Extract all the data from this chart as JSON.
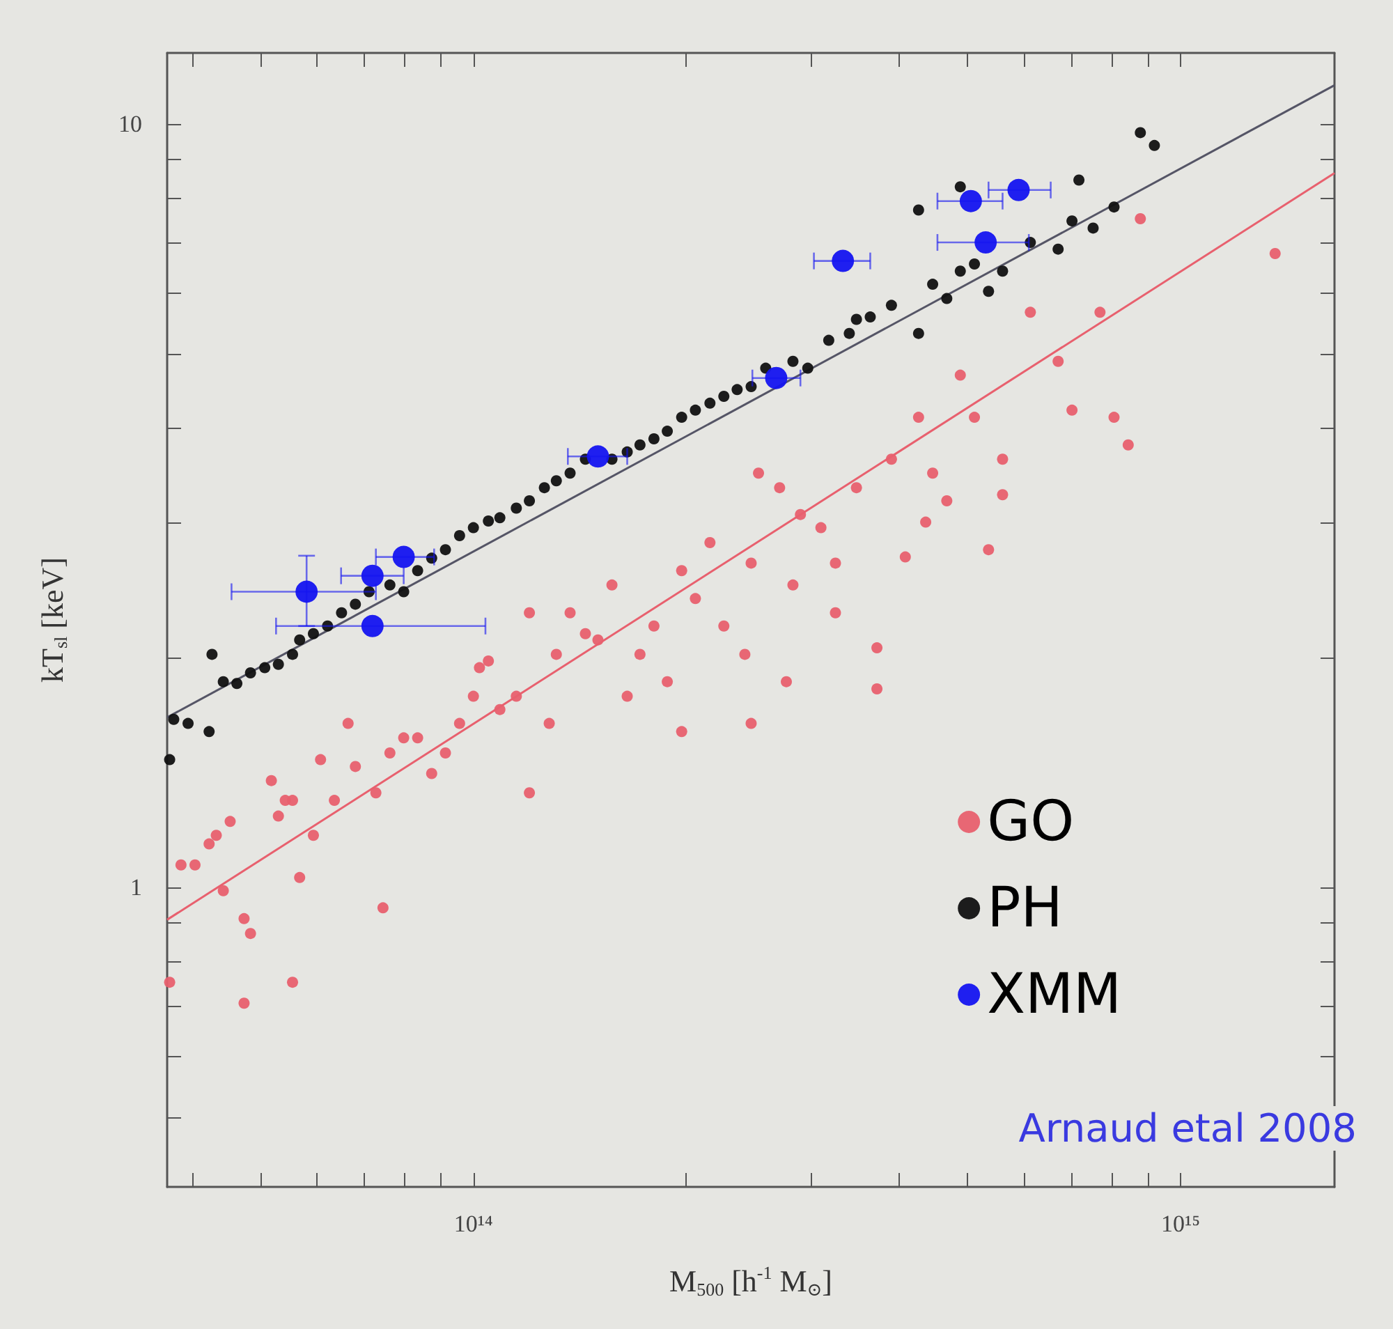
{
  "chart_data": {
    "type": "scatter",
    "xlabel": "M$_{500}$ [h$^{-1}$ M$_{⊙}$]",
    "ylabel": "kT$_{sl}$ [keV]",
    "log": "xy",
    "grid": false,
    "legend": "bottom right",
    "xlim": [
      36900000000000.0,
      1650000000000000.0
    ],
    "xticks": [
      {
        "value": 40000000000000.0,
        "label": null
      },
      {
        "value": 50000000000000.0,
        "label": null
      },
      {
        "value": 60000000000000.0,
        "label": null
      },
      {
        "value": 70000000000000.0,
        "label": null
      },
      {
        "value": 80000000000000.0,
        "label": null
      },
      {
        "value": 90000000000000.0,
        "label": null
      },
      {
        "value": 100000000000000.0,
        "label": "10¹⁴"
      },
      {
        "value": 200000000000000.0,
        "label": null
      },
      {
        "value": 300000000000000.0,
        "label": null
      },
      {
        "value": 400000000000000.0,
        "label": null
      },
      {
        "value": 500000000000000.0,
        "label": null
      },
      {
        "value": 600000000000000.0,
        "label": null
      },
      {
        "value": 700000000000000.0,
        "label": null
      },
      {
        "value": 800000000000000.0,
        "label": null
      },
      {
        "value": 900000000000000.0,
        "label": null
      },
      {
        "value": 1000000000000000.0,
        "label": "10¹⁵"
      }
    ],
    "ylim": [
      0.405,
      12.4
    ],
    "yticks": [
      {
        "value": 0.5,
        "label": null
      },
      {
        "value": 0.6,
        "label": null
      },
      {
        "value": 0.7,
        "label": null
      },
      {
        "value": 0.8,
        "label": null
      },
      {
        "value": 0.9,
        "label": null
      },
      1,
      {
        "value": 2,
        "label": null
      },
      {
        "value": 3,
        "label": null
      },
      {
        "value": 4,
        "label": null
      },
      {
        "value": 5,
        "label": null
      },
      {
        "value": 6,
        "label": null
      },
      {
        "value": 7,
        "label": null
      },
      {
        "value": 8,
        "label": null
      },
      {
        "value": 9,
        "label": null
      },
      10
    ],
    "annotations": [
      "Arnaud etal 2008"
    ],
    "series": [
      {
        "name": "GO",
        "color": "#e8606e",
        "marker": "circle",
        "x": [
          37200000000000.0,
          38600000000000.0,
          40400000000000.0,
          42300000000000.0,
          43300000000000.0,
          44300000000000.0,
          45300000000000.0,
          47400000000000.0,
          48400000000000.0,
          51800000000000.0,
          53000000000000.0,
          54200000000000.0,
          55500000000000.0,
          56800000000000.0,
          59400000000000.0,
          55500000000000.0,
          47400000000000.0,
          60800000000000.0,
          63600000000000.0,
          66500000000000.0,
          68100000000000.0,
          72800000000000.0,
          74500000000000.0,
          76200000000000.0,
          79700000000000.0,
          83400000000000.0,
          87300000000000.0,
          91300000000000.0,
          95600000000000.0,
          100000000000000.0,
          102000000000000.0,
          105000000000000.0,
          109000000000000.0,
          115000000000000.0,
          120000000000000.0,
          120000000000000.0,
          128000000000000.0,
          131000000000000.0,
          137000000000000.0,
          144000000000000.0,
          150000000000000.0,
          157000000000000.0,
          165000000000000.0,
          172000000000000.0,
          180000000000000.0,
          188000000000000.0,
          197000000000000.0,
          197000000000000.0,
          206000000000000.0,
          216000000000000.0,
          226000000000000.0,
          242000000000000.0,
          247000000000000.0,
          253000000000000.0,
          271000000000000.0,
          277000000000000.0,
          283000000000000.0,
          290000000000000.0,
          310000000000000.0,
          325000000000000.0,
          348000000000000.0,
          372000000000000.0,
          390000000000000.0,
          408000000000000.0,
          426000000000000.0,
          446000000000000.0,
          467000000000000.0,
          488000000000000.0,
          511000000000000.0,
          535000000000000.0,
          560000000000000.0,
          560000000000000.0,
          613000000000000.0,
          671000000000000.0,
          702000000000000.0,
          769000000000000.0,
          805000000000000.0,
          843000000000000.0,
          877000000000000.0,
          1360000000000000.0,
          372000000000000.0,
          436000000000000.0,
          247000000000000.0,
          325000000000000.0
        ],
        "values": [
          0.751,
          1.07,
          1.07,
          1.14,
          1.17,
          0.99,
          1.22,
          0.91,
          0.87,
          1.38,
          1.24,
          1.3,
          1.3,
          1.03,
          1.17,
          0.751,
          0.705,
          1.47,
          1.3,
          1.64,
          1.44,
          1.33,
          0.94,
          1.5,
          1.57,
          1.57,
          1.41,
          1.5,
          1.64,
          1.78,
          1.94,
          1.98,
          1.71,
          1.78,
          1.33,
          2.29,
          1.64,
          2.02,
          2.29,
          2.15,
          2.11,
          2.49,
          1.78,
          2.02,
          2.2,
          1.86,
          1.6,
          2.6,
          2.39,
          2.83,
          2.2,
          2.02,
          1.64,
          3.49,
          3.34,
          1.86,
          2.49,
          3.08,
          2.96,
          2.29,
          3.34,
          2.06,
          3.64,
          2.71,
          4.13,
          3.49,
          3.21,
          4.69,
          4.13,
          2.77,
          3.64,
          3.27,
          5.67,
          4.89,
          4.22,
          5.67,
          4.13,
          3.8,
          7.52,
          6.77,
          1.82,
          3.01,
          2.66,
          2.66
        ]
      },
      {
        "name": "PH",
        "color": "#111111",
        "marker": "circle",
        "x": [
          37200000000000.0,
          37700000000000.0,
          39500000000000.0,
          42300000000000.0,
          42700000000000.0,
          44300000000000.0,
          46300000000000.0,
          48400000000000.0,
          50700000000000.0,
          53000000000000.0,
          55500000000000.0,
          56800000000000.0,
          59400000000000.0,
          62200000000000.0,
          65100000000000.0,
          68100000000000.0,
          71200000000000.0,
          76200000000000.0,
          79700000000000.0,
          83400000000000.0,
          87300000000000.0,
          91300000000000.0,
          95600000000000.0,
          100000000000000.0,
          105000000000000.0,
          109000000000000.0,
          115000000000000.0,
          120000000000000.0,
          126000000000000.0,
          131000000000000.0,
          137000000000000.0,
          144000000000000.0,
          157000000000000.0,
          165000000000000.0,
          172000000000000.0,
          180000000000000.0,
          188000000000000.0,
          197000000000000.0,
          206000000000000.0,
          216000000000000.0,
          226000000000000.0,
          236000000000000.0,
          247000000000000.0,
          259000000000000.0,
          271000000000000.0,
          283000000000000.0,
          297000000000000.0,
          318000000000000.0,
          340000000000000.0,
          348000000000000.0,
          364000000000000.0,
          390000000000000.0,
          426000000000000.0,
          446000000000000.0,
          467000000000000.0,
          488000000000000.0,
          511000000000000.0,
          535000000000000.0,
          560000000000000.0,
          613000000000000.0,
          671000000000000.0,
          702000000000000.0,
          752000000000000.0,
          805000000000000.0,
          718000000000000.0,
          877000000000000.0,
          918000000000000.0,
          426000000000000.0,
          488000000000000.0
        ],
        "values": [
          1.47,
          1.66,
          1.64,
          1.6,
          2.02,
          1.86,
          1.85,
          1.91,
          1.94,
          1.96,
          2.02,
          2.11,
          2.15,
          2.2,
          2.29,
          2.35,
          2.44,
          2.49,
          2.44,
          2.6,
          2.7,
          2.77,
          2.89,
          2.96,
          3.02,
          3.05,
          3.14,
          3.21,
          3.34,
          3.41,
          3.49,
          3.64,
          3.64,
          3.72,
          3.8,
          3.87,
          3.96,
          4.13,
          4.22,
          4.31,
          4.4,
          4.49,
          4.53,
          4.79,
          null,
          4.89,
          4.79,
          5.21,
          5.32,
          5.55,
          5.59,
          5.79,
          5.32,
          6.17,
          5.91,
          6.42,
          6.56,
          6.04,
          6.42,
          7.0,
          6.86,
          7.47,
          7.31,
          7.79,
          8.45,
          9.75,
          9.38,
          7.72,
          8.28
        ]
      },
      {
        "name": "XMM",
        "color": "#1414f0",
        "marker": "circle",
        "x": [
          58100000000000.0,
          72000000000000.0,
          79700000000000.0,
          72000000000000.0,
          150000000000000.0,
          268000000000000.0,
          333000000000000.0,
          505000000000000.0,
          590000000000000.0,
          530000000000000.0
        ],
        "values": [
          2.44,
          2.56,
          2.71,
          2.2,
          3.67,
          4.65,
          6.62,
          7.93,
          8.2,
          7.0
        ],
        "xerrors": [
          [
            45500000000000.0,
            72800000000000.0
          ],
          [
            65000000000000.0,
            79700000000000.0
          ],
          [
            72800000000000.0,
            88000000000000.0
          ],
          [
            52600000000000.0,
            104000000000000.0
          ],
          [
            136000000000000.0,
            165000000000000.0
          ],
          [
            248000000000000.0,
            290000000000000.0
          ],
          [
            303000000000000.0,
            364000000000000.0
          ],
          [
            453000000000000.0,
            560000000000000.0
          ],
          [
            535000000000000.0,
            655000000000000.0
          ],
          [
            453000000000000.0,
            610000000000000.0
          ]
        ],
        "errors": [
          [
            2.2,
            2.72
          ],
          null,
          null,
          null,
          null,
          null,
          null,
          null,
          null,
          null
        ]
      },
      {
        "type": "line",
        "color": "#e8606e",
        "marker": "none",
        "x": [
          36900000000000.0,
          1650000000000000.0
        ],
        "values": [
          0.907,
          8.63
        ]
      },
      {
        "type": "line",
        "color": "#555566",
        "marker": "none",
        "x": [
          36900000000000.0,
          1650000000000000.0
        ],
        "values": [
          1.67,
          11.25
        ]
      }
    ]
  }
}
